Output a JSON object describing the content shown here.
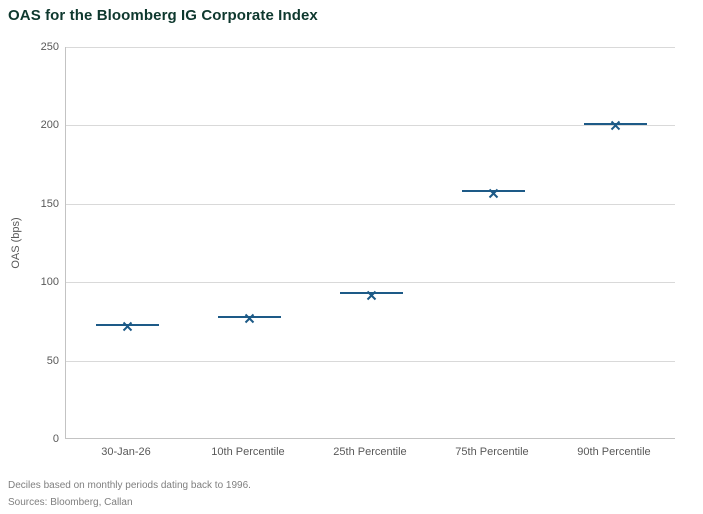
{
  "title": "OAS for the Bloomberg IG Corporate Index",
  "footnotes": {
    "line1": "Deciles based on monthly periods dating back to 1996.",
    "line2": "Sources: Bloomberg, Callan"
  },
  "chart_data": {
    "type": "scatter",
    "marker_style": "x-with-horizontal-dash",
    "title": "OAS for the Bloomberg IG Corporate Index",
    "categories": [
      "30-Jan-26",
      "10th Percentile",
      "25th Percentile",
      "75th Percentile",
      "90th Percentile"
    ],
    "values": [
      73,
      78,
      93,
      158,
      201
    ],
    "xlabel": "",
    "ylabel": "OAS (bps)",
    "ylim": [
      0,
      250
    ],
    "yticks": [
      0,
      50,
      100,
      150,
      200,
      250
    ],
    "grid": "horizontal",
    "legend": "none",
    "colors": {
      "title": "#0e382e",
      "marker": "#1d5a87",
      "grid": "#d9d9d9",
      "axis": "#c3c3c3",
      "tick_label": "#595959",
      "footnote": "#7f7f7f"
    }
  }
}
